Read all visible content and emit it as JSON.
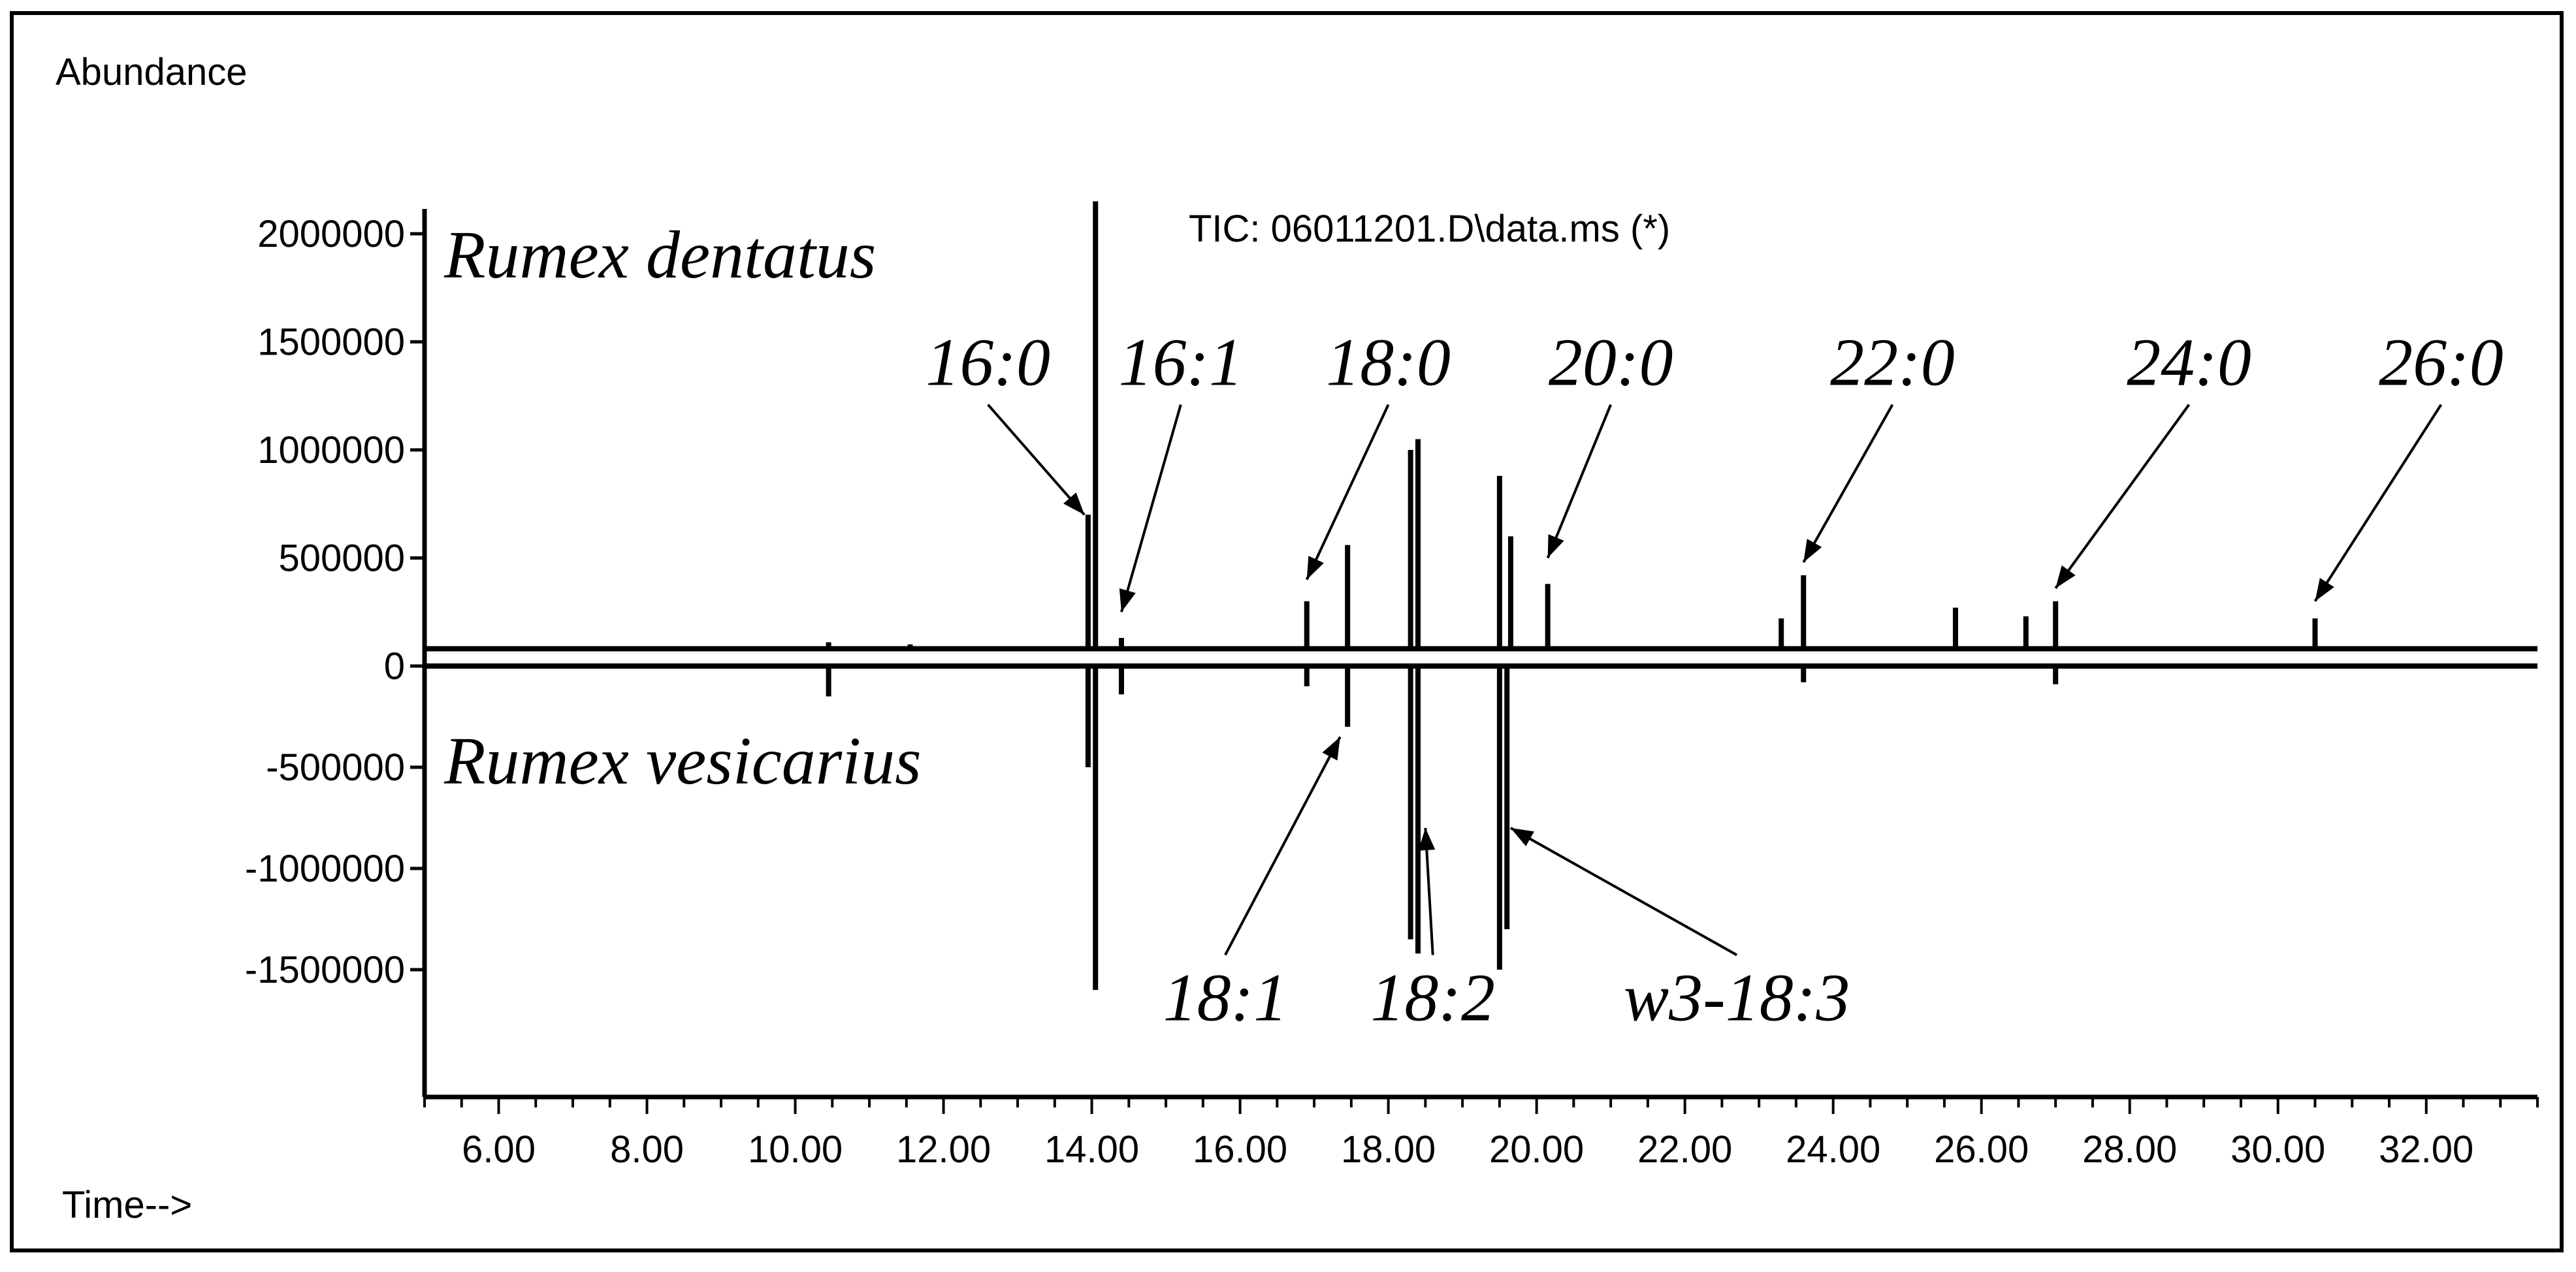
{
  "header": {
    "y_title": "Abundance",
    "x_title": "Time-->",
    "trace_label": "TIC: 06011201.D\\data.ms (*)"
  },
  "chart_data": {
    "type": "line",
    "title": "",
    "ylabel": "Abundance",
    "xlabel": "Time-->",
    "xlim": [
      5.0,
      33.5
    ],
    "ylim": [
      -2000000,
      2200000
    ],
    "x_ticks": [
      "6.00",
      "8.00",
      "10.00",
      "12.00",
      "14.00",
      "16.00",
      "18.00",
      "20.00",
      "22.00",
      "24.00",
      "26.00",
      "28.00",
      "30.00",
      "32.00"
    ],
    "y_ticks": [
      "2000000",
      "1500000",
      "1000000",
      "500000",
      "0",
      "-500000",
      "-1000000",
      "-1500000"
    ],
    "grid": false,
    "series": [
      {
        "name": "Rumex dentatus",
        "baseline": 80000,
        "peaks": [
          {
            "x": 10.45,
            "y": 110000
          },
          {
            "x": 11.55,
            "y": 100000
          },
          {
            "x": 13.95,
            "y": 700000
          },
          {
            "x": 14.05,
            "y": 2150000
          },
          {
            "x": 14.4,
            "y": 130000
          },
          {
            "x": 16.9,
            "y": 300000
          },
          {
            "x": 17.45,
            "y": 560000
          },
          {
            "x": 18.3,
            "y": 1000000
          },
          {
            "x": 18.4,
            "y": 1050000
          },
          {
            "x": 19.5,
            "y": 880000
          },
          {
            "x": 19.65,
            "y": 600000
          },
          {
            "x": 20.15,
            "y": 380000
          },
          {
            "x": 23.3,
            "y": 220000
          },
          {
            "x": 23.6,
            "y": 420000
          },
          {
            "x": 25.65,
            "y": 270000
          },
          {
            "x": 26.6,
            "y": 230000
          },
          {
            "x": 27.0,
            "y": 300000
          },
          {
            "x": 30.5,
            "y": 220000
          }
        ]
      },
      {
        "name": "Rumex vesicarius",
        "baseline": 0,
        "peaks": [
          {
            "x": 10.45,
            "y": -150000
          },
          {
            "x": 13.95,
            "y": -500000
          },
          {
            "x": 14.05,
            "y": -1600000
          },
          {
            "x": 14.4,
            "y": -140000
          },
          {
            "x": 16.9,
            "y": -100000
          },
          {
            "x": 17.45,
            "y": -300000
          },
          {
            "x": 18.3,
            "y": -1350000
          },
          {
            "x": 18.4,
            "y": -1420000
          },
          {
            "x": 19.5,
            "y": -1500000
          },
          {
            "x": 19.6,
            "y": -1300000
          },
          {
            "x": 23.6,
            "y": -80000
          },
          {
            "x": 27.0,
            "y": -90000
          }
        ]
      }
    ],
    "annotations": [
      {
        "text": "16:0",
        "label_x": 12.6,
        "label_y": 1300000,
        "x": 13.9,
        "y": 700000
      },
      {
        "text": "16:1",
        "label_x": 15.2,
        "label_y": 1300000,
        "x": 14.4,
        "y": 250000
      },
      {
        "text": "18:0",
        "label_x": 18.0,
        "label_y": 1300000,
        "x": 16.9,
        "y": 400000
      },
      {
        "text": "20:0",
        "label_x": 21.0,
        "label_y": 1300000,
        "x": 20.15,
        "y": 500000
      },
      {
        "text": "22:0",
        "label_x": 24.8,
        "label_y": 1300000,
        "x": 23.6,
        "y": 480000
      },
      {
        "text": "24:0",
        "label_x": 28.8,
        "label_y": 1300000,
        "x": 27.0,
        "y": 360000
      },
      {
        "text": "26:0",
        "label_x": 32.2,
        "label_y": 1300000,
        "x": 30.5,
        "y": 300000
      },
      {
        "text": "18:1",
        "label_x": 15.8,
        "label_y": -1750000,
        "x": 17.35,
        "y": -350000
      },
      {
        "text": "18:2",
        "label_x": 18.6,
        "label_y": -1750000,
        "x": 18.5,
        "y": -800000
      },
      {
        "text": "w3-18:3",
        "label_x": 22.7,
        "label_y": -1750000,
        "x": 19.65,
        "y": -800000
      }
    ]
  }
}
